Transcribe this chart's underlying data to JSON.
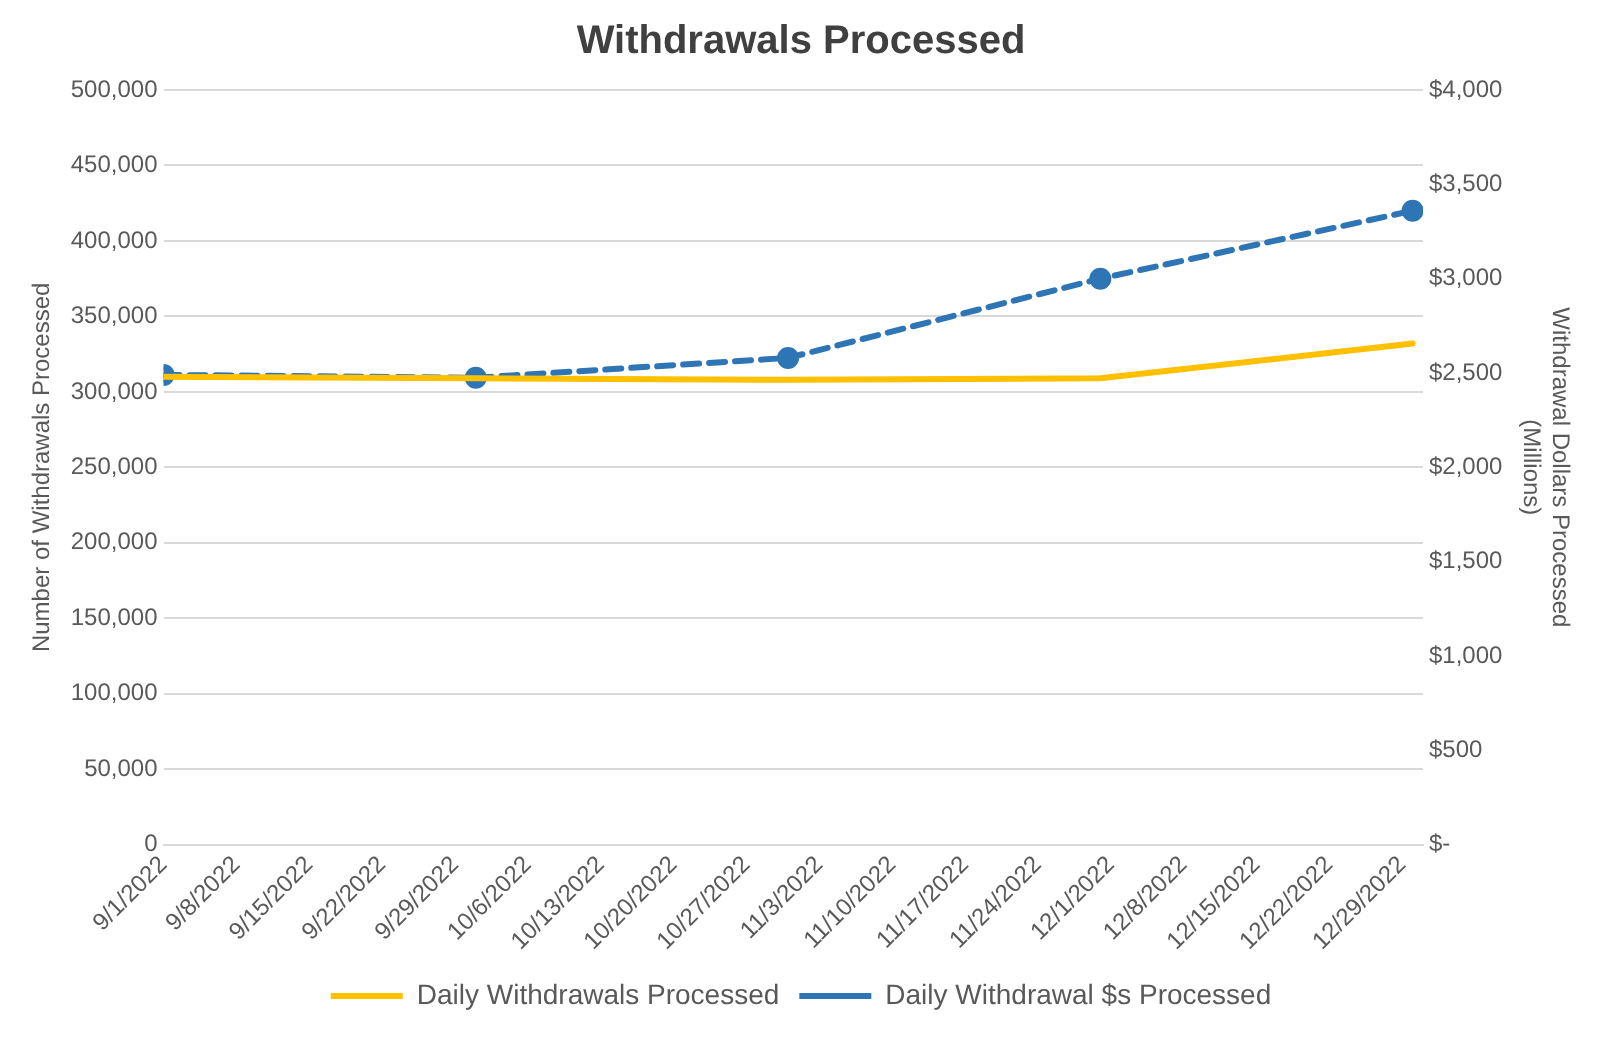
{
  "chart_data": {
    "type": "line",
    "title": "Withdrawals Processed",
    "ylabel": "Number of Withdrawals Processed",
    "y2label": "Withdrawal Dollars Processed\n(Millions)",
    "x": [
      "2022-09-01",
      "2022-10-01",
      "2022-10-31",
      "2022-11-30",
      "2022-12-30"
    ],
    "series": [
      {
        "name": "Daily Withdrawals Processed",
        "color": "#ffc000",
        "values": [
          310000,
          309000,
          308000,
          309000,
          332000
        ],
        "marker": "none",
        "line_style": "solid"
      },
      {
        "name": "Daily Withdrawal $s Processed",
        "color": "#2e75b6",
        "values": [
          2490,
          2475,
          2580,
          3000,
          3360
        ],
        "axis": "y2",
        "marker": "circle",
        "line_style": "dashed"
      }
    ],
    "xlim": [
      "2022-09-01",
      "2022-12-31"
    ],
    "xticks": [
      {
        "value": "2022-09-01",
        "label": "9/1/2022"
      },
      {
        "value": "2022-09-08",
        "label": "9/8/2022"
      },
      {
        "value": "2022-09-15",
        "label": "9/15/2022"
      },
      {
        "value": "2022-09-22",
        "label": "9/22/2022"
      },
      {
        "value": "2022-09-29",
        "label": "9/29/2022"
      },
      {
        "value": "2022-10-06",
        "label": "10/6/2022"
      },
      {
        "value": "2022-10-13",
        "label": "10/13/2022"
      },
      {
        "value": "2022-10-20",
        "label": "10/20/2022"
      },
      {
        "value": "2022-10-27",
        "label": "10/27/2022"
      },
      {
        "value": "2022-11-03",
        "label": "11/3/2022"
      },
      {
        "value": "2022-11-10",
        "label": "11/10/2022"
      },
      {
        "value": "2022-11-17",
        "label": "11/17/2022"
      },
      {
        "value": "2022-11-24",
        "label": "11/24/2022"
      },
      {
        "value": "2022-12-01",
        "label": "12/1/2022"
      },
      {
        "value": "2022-12-08",
        "label": "12/8/2022"
      },
      {
        "value": "2022-12-15",
        "label": "12/15/2022"
      },
      {
        "value": "2022-12-22",
        "label": "12/22/2022"
      },
      {
        "value": "2022-12-29",
        "label": "12/29/2022"
      }
    ],
    "ylim": [
      0,
      500000
    ],
    "yticks": [
      0,
      {
        "value": 50000,
        "label": "50,000"
      },
      {
        "value": 100000,
        "label": "100,000"
      },
      {
        "value": 150000,
        "label": "150,000"
      },
      {
        "value": 200000,
        "label": "200,000"
      },
      {
        "value": 250000,
        "label": "250,000"
      },
      {
        "value": 300000,
        "label": "300,000"
      },
      {
        "value": 350000,
        "label": "350,000"
      },
      {
        "value": 400000,
        "label": "400,000"
      },
      {
        "value": 450000,
        "label": "450,000"
      },
      {
        "value": 500000,
        "label": "500,000"
      }
    ],
    "y2lim": [
      0,
      4000
    ],
    "y2ticks": [
      {
        "value": 0,
        "label": "$-"
      },
      {
        "value": 500,
        "label": "$500"
      },
      {
        "value": 1000,
        "label": "$1,000"
      },
      {
        "value": 1500,
        "label": "$1,500"
      },
      {
        "value": 2000,
        "label": "$2,000"
      },
      {
        "value": 2500,
        "label": "$2,500"
      },
      {
        "value": 3000,
        "label": "$3,000"
      },
      {
        "value": 3500,
        "label": "$3,500"
      },
      {
        "value": 4000,
        "label": "$4,000"
      }
    ],
    "grid": "y",
    "legend": "bottom"
  }
}
